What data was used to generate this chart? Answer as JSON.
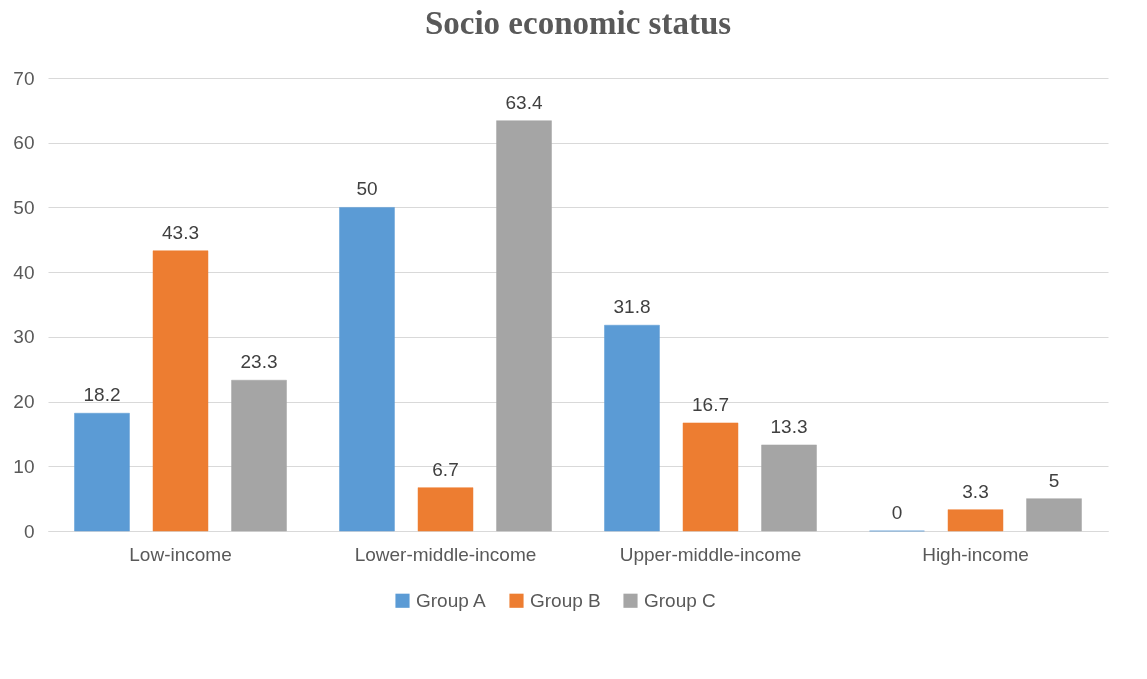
{
  "chart_data": {
    "type": "bar",
    "title": "Socio economic status",
    "categories": [
      "Low-income",
      "Lower-middle-income",
      "Upper-middle-income",
      "High-income"
    ],
    "series": [
      {
        "name": "Group A",
        "color": "#5b9bd5",
        "values": [
          18.2,
          50,
          31.8,
          0
        ]
      },
      {
        "name": "Group B",
        "color": "#ed7d31",
        "values": [
          43.3,
          6.7,
          16.7,
          3.3
        ]
      },
      {
        "name": "Group C",
        "color": "#a5a5a5",
        "values": [
          23.3,
          63.4,
          13.3,
          5
        ]
      }
    ],
    "ylim": [
      0,
      70
    ],
    "yticks": [
      0,
      10,
      20,
      30,
      40,
      50,
      60,
      70
    ],
    "grid": "y",
    "legend": "bottom",
    "data_labels": true
  }
}
